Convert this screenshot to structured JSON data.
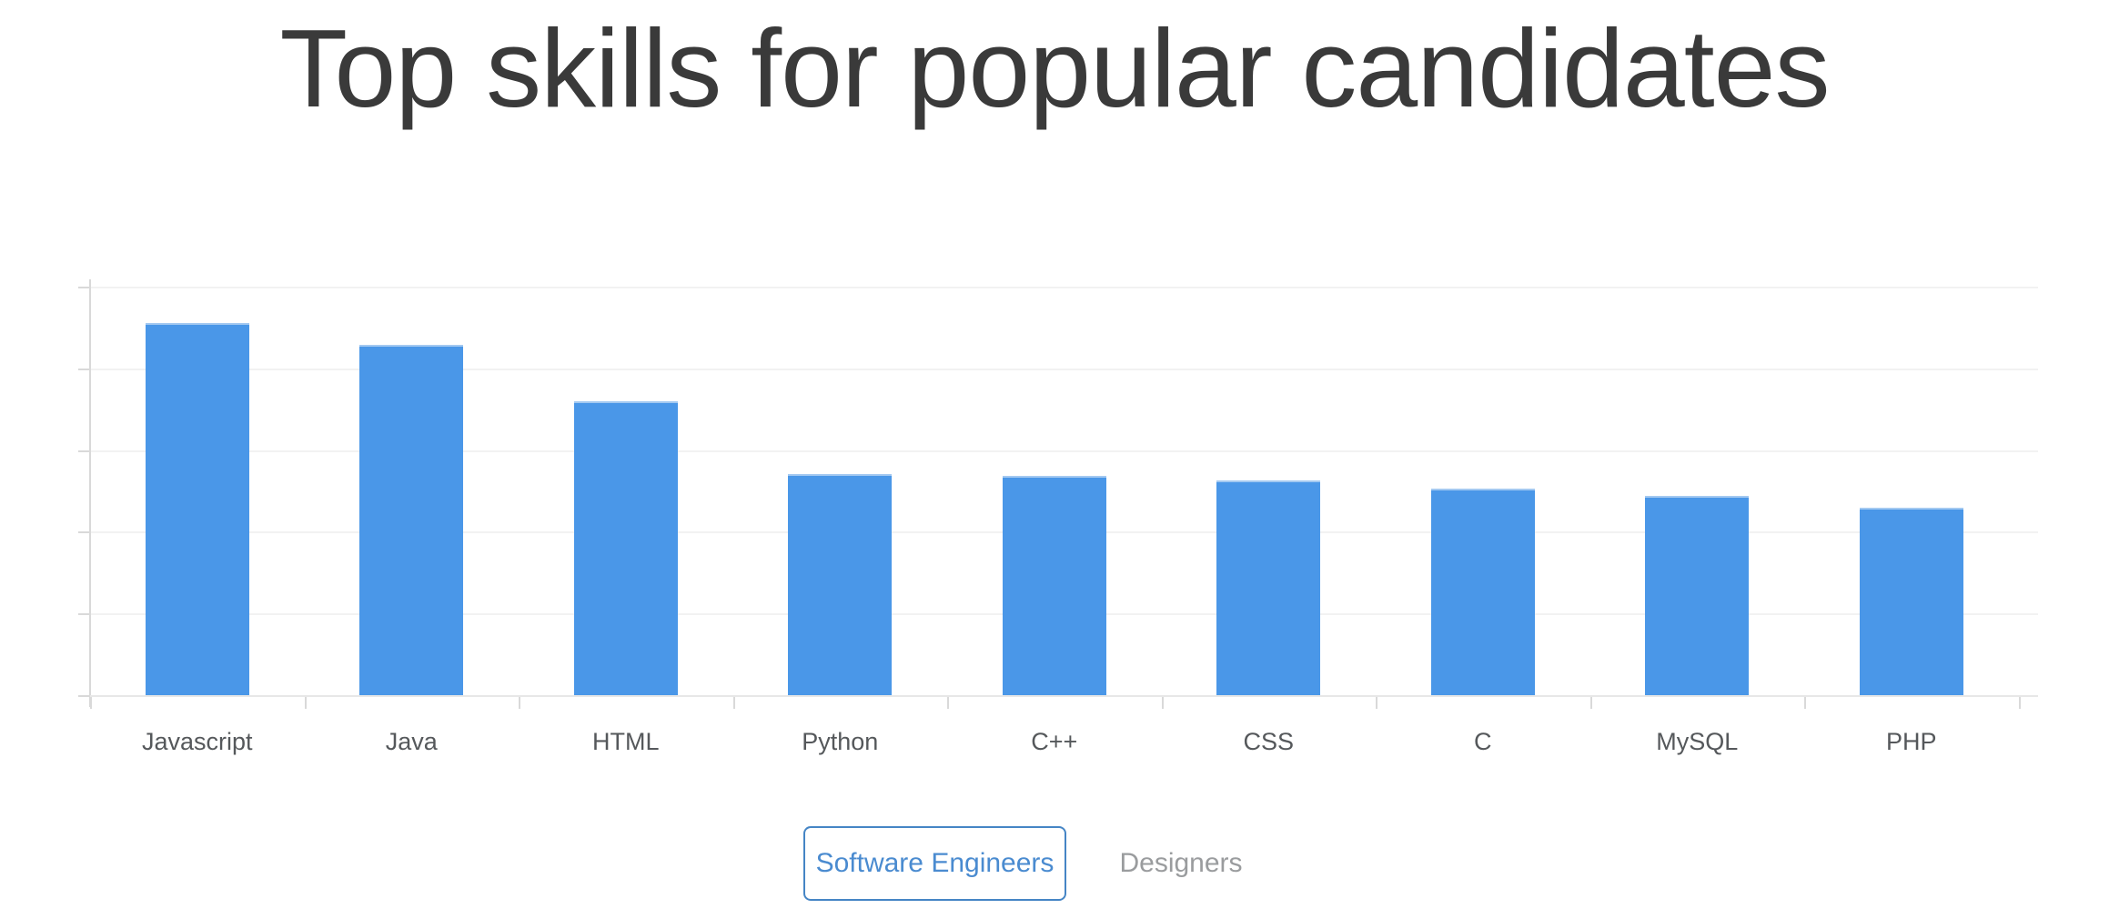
{
  "title": {
    "text": "Top skills for popular candidates",
    "color": "#3a3a3a"
  },
  "chart_data": {
    "type": "bar",
    "title": "Top skills for popular candidates",
    "categories": [
      "Javascript",
      "Java",
      "HTML",
      "Python",
      "C++",
      "CSS",
      "C",
      "MySQL",
      "PHP"
    ],
    "values": [
      91.1,
      85.7,
      71.9,
      54.1,
      53.7,
      52.6,
      50.6,
      48.8,
      45.9
    ],
    "values_note": "y-axis has no visible tick labels; values estimated as percent of axis maximum (top gridline = 100)",
    "xlabel": "",
    "ylabel": "",
    "ylim": [
      0,
      100
    ],
    "grid": true,
    "gridline_values": [
      20,
      40,
      60,
      80,
      100
    ],
    "legend_position": "none",
    "bar_color": "#4a97e8",
    "bar_top_edge_color": "#a3c9f1",
    "gridline_color": "#f2f2f2",
    "axis_color": "#d9d9d9",
    "label_color": "#55585b"
  },
  "toggle": {
    "options": [
      {
        "label": "Software Engineers",
        "selected": true
      },
      {
        "label": "Designers",
        "selected": false
      }
    ],
    "accent_color": "#4585c5",
    "active_text_color": "#4a8bd0",
    "inactive_text_color": "#9a9c9e"
  }
}
